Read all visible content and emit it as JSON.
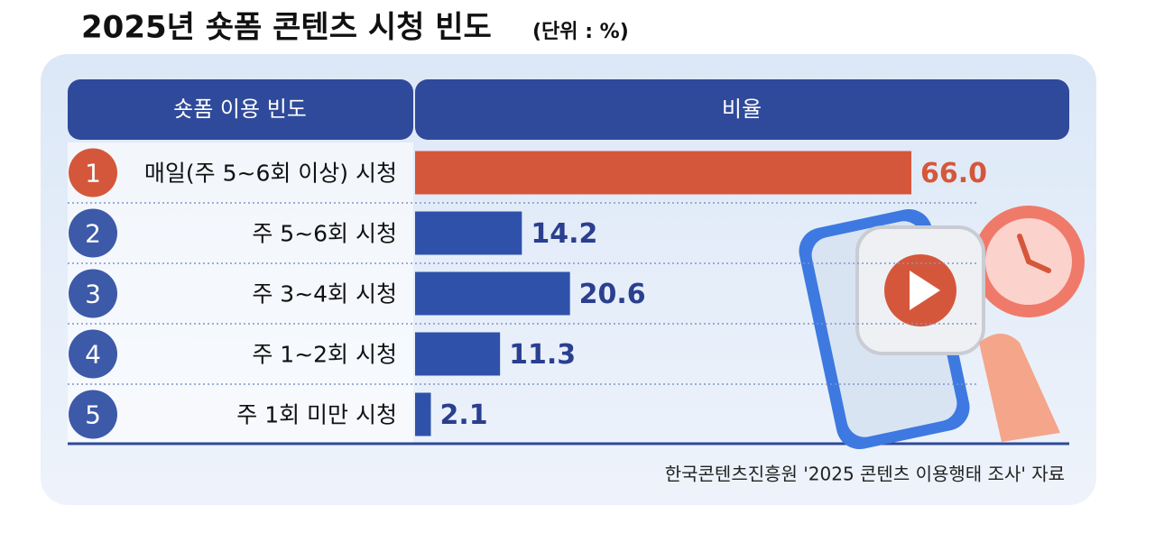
{
  "chart_data": {
    "type": "bar",
    "orientation": "horizontal",
    "title": "2025년 숏폼 콘텐츠 시청 빈도",
    "subtitle": "(단위 : %)",
    "column_headers": [
      "숏폼 이용 빈도",
      "비율"
    ],
    "ranks": [
      "1",
      "2",
      "3",
      "4",
      "5"
    ],
    "categories": [
      "매일(주 5~6회 이상) 시청",
      "주 5~6회 시청",
      "주 3~4회 시청",
      "주 1~2회 시청",
      "주 1회 미만 시청"
    ],
    "values": [
      66.0,
      14.2,
      20.6,
      11.3,
      2.1
    ],
    "value_labels": [
      "66.0",
      "14.2",
      "20.6",
      "11.3",
      "2.1"
    ],
    "colors": [
      "#d5573b",
      "#2f51aa",
      "#2f51aa",
      "#2f51aa",
      "#2f51aa"
    ],
    "source": "한국콘텐츠진흥원 '2025 콘텐츠 이용행태 조사' 자료"
  }
}
